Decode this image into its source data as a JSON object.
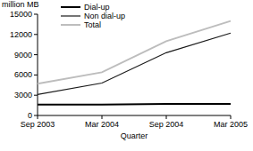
{
  "chart_data": {
    "type": "line",
    "y_label": "million MB",
    "x_label": "Quarter",
    "categories": [
      "Sep 2003",
      "Mar 2004",
      "Sep 2004",
      "Mar 2005"
    ],
    "series": [
      {
        "name": "Dial-up",
        "color": "#000000",
        "values": [
          1600,
          1600,
          1700,
          1700
        ]
      },
      {
        "name": "Non dial-up",
        "color": "#1a1a1a",
        "values": [
          3100,
          4800,
          9300,
          12200
        ]
      },
      {
        "name": "Total",
        "color": "#bdbdbd",
        "values": [
          4700,
          6400,
          11000,
          14000
        ]
      }
    ],
    "ylim": [
      0,
      15000
    ],
    "yticks": [
      0,
      3000,
      6000,
      9000,
      12000,
      15000
    ],
    "grid": false,
    "legend": "top-left"
  }
}
